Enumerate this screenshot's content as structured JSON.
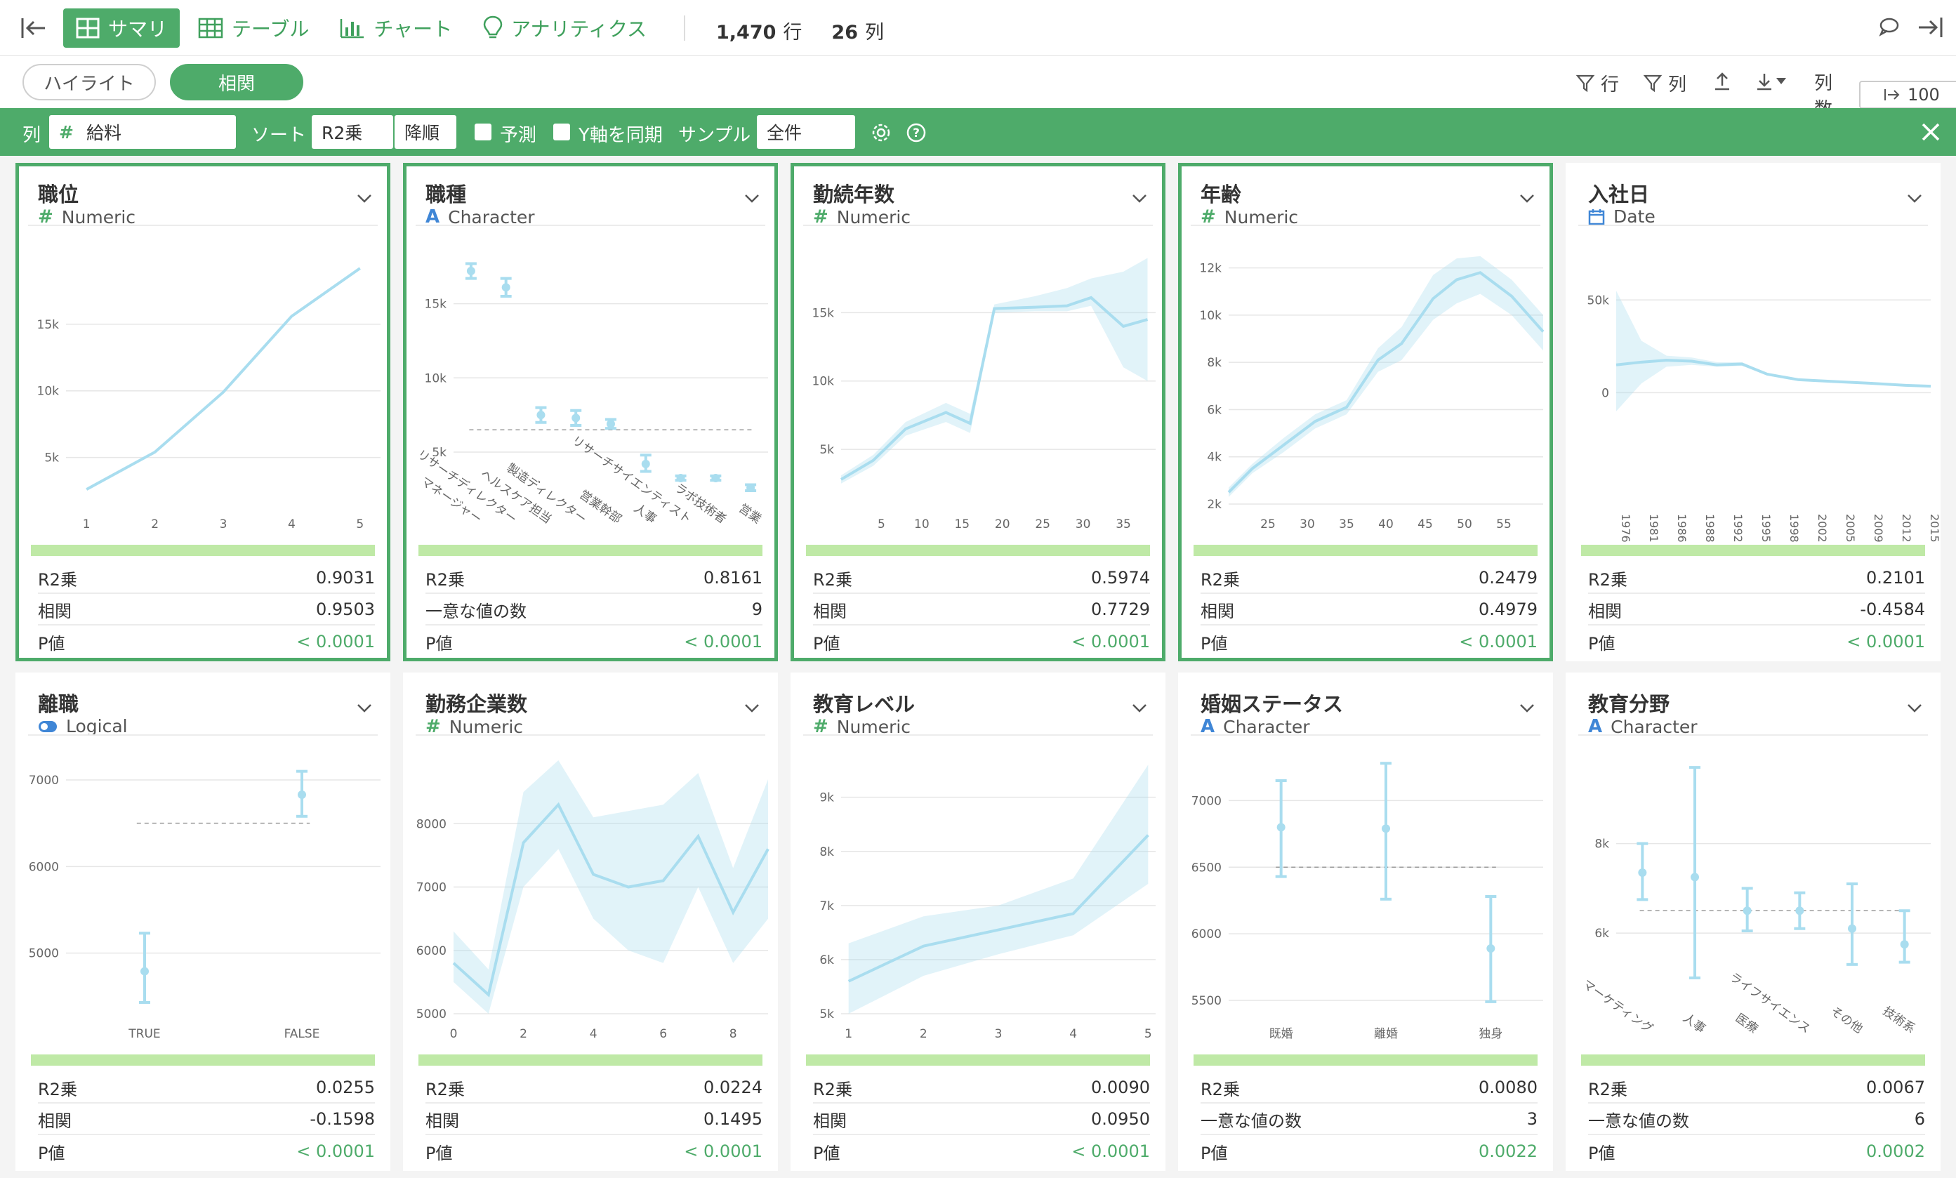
{
  "toolbar": {
    "tabs": [
      {
        "label": "サマリ",
        "icon": "table-grid-icon",
        "active": true
      },
      {
        "label": "テーブル",
        "icon": "table-icon",
        "active": false
      },
      {
        "label": "チャート",
        "icon": "bar-chart-icon",
        "active": false
      },
      {
        "label": "アナリティクス",
        "icon": "lightbulb-icon",
        "active": false
      }
    ],
    "rows_count": "1,470",
    "rows_unit": "行",
    "cols_count": "26",
    "cols_unit": "列"
  },
  "subbar": {
    "pills": [
      {
        "label": "ハイライト",
        "active": false
      },
      {
        "label": "相関",
        "active": true
      }
    ],
    "row_filter": "行",
    "col_filter": "列",
    "col_count_label": "列数",
    "col_count_value": "100"
  },
  "filterbar": {
    "col_label": "列",
    "col_value": "給料",
    "sort_label": "ソート",
    "sort_key": "R2乗",
    "sort_order": "降順",
    "predict_label": "予測",
    "sync_y_label": "Y軸を同期",
    "sample_label": "サンプル",
    "sample_value": "全件"
  },
  "accent": "#4eab6a",
  "cards": [
    {
      "title": "職位",
      "type": "Numeric",
      "selected": true,
      "stats": [
        [
          "R2乗",
          "0.9031"
        ],
        [
          "相関",
          "0.9503"
        ],
        [
          "P値",
          "< 0.0001"
        ]
      ],
      "chart": {
        "kind": "line",
        "x_ticks": [
          "1",
          "2",
          "3",
          "4",
          "5"
        ],
        "y_ticks": [
          "5k",
          "10k",
          "15k"
        ],
        "x": [
          1,
          2,
          3,
          4,
          5
        ],
        "y": [
          2600,
          5400,
          9900,
          15600,
          19200
        ],
        "xlim": [
          0.7,
          5.3
        ],
        "ylim": [
          1500,
          21000
        ],
        "ytick_vals": [
          5000,
          10000,
          15000
        ]
      }
    },
    {
      "title": "職種",
      "type": "Character",
      "selected": true,
      "stats": [
        [
          "R2乗",
          "0.8161"
        ],
        [
          "一意な値の数",
          "9"
        ],
        [
          "P値",
          "< 0.0001"
        ]
      ],
      "chart": {
        "kind": "errorbar",
        "y_ticks": [
          "5k",
          "10k",
          "15k"
        ],
        "ytick_vals": [
          5000,
          10000,
          15000
        ],
        "ylim": [
          1500,
          19000
        ],
        "categories": [
          "マネージャー",
          "リサーチディレクター",
          "ヘルスケア担当",
          "製造ディレクター",
          "営業幹部",
          "人事",
          "リサーチサイエンティスト",
          "ラボ技術者",
          "営業"
        ],
        "means": [
          17200,
          16100,
          7500,
          7300,
          6900,
          4200,
          3250,
          3250,
          2600
        ],
        "lo": [
          16700,
          15500,
          7000,
          6800,
          6600,
          3700,
          3100,
          3100,
          2400
        ],
        "hi": [
          17700,
          16700,
          8000,
          7800,
          7200,
          4800,
          3400,
          3400,
          2800
        ],
        "overall": 6500
      }
    },
    {
      "title": "勤続年数",
      "type": "Numeric",
      "selected": true,
      "stats": [
        [
          "R2乗",
          "0.5974"
        ],
        [
          "相関",
          "0.7729"
        ],
        [
          "P値",
          "< 0.0001"
        ]
      ],
      "chart": {
        "kind": "area",
        "x_ticks": [
          "5",
          "10",
          "15",
          "20",
          "25",
          "30",
          "35"
        ],
        "xtick_vals": [
          5,
          10,
          15,
          20,
          25,
          30,
          35
        ],
        "y_ticks": [
          "5k",
          "10k",
          "15k"
        ],
        "ytick_vals": [
          5000,
          10000,
          15000
        ],
        "xlim": [
          0,
          39
        ],
        "ylim": [
          1000,
          20000
        ],
        "x": [
          0,
          4,
          8,
          13,
          16,
          19,
          24,
          28,
          31,
          35,
          38
        ],
        "y": [
          2800,
          4200,
          6500,
          7700,
          6900,
          15300,
          15400,
          15500,
          16100,
          14000,
          14500
        ],
        "lo": [
          2500,
          3800,
          6000,
          7000,
          6200,
          15000,
          15100,
          15100,
          15500,
          11000,
          10000
        ],
        "hi": [
          3100,
          4600,
          7000,
          8400,
          7600,
          15600,
          16200,
          16800,
          17500,
          18000,
          19000
        ]
      }
    },
    {
      "title": "年齢",
      "type": "Numeric",
      "selected": true,
      "stats": [
        [
          "R2乗",
          "0.2479"
        ],
        [
          "相関",
          "0.4979"
        ],
        [
          "P値",
          "< 0.0001"
        ]
      ],
      "chart": {
        "kind": "area",
        "x_ticks": [
          "25",
          "30",
          "35",
          "40",
          "45",
          "50",
          "55"
        ],
        "xtick_vals": [
          25,
          30,
          35,
          40,
          45,
          50,
          55
        ],
        "y_ticks": [
          "2k",
          "4k",
          "6k",
          "8k",
          "10k",
          "12k"
        ],
        "ytick_vals": [
          2000,
          4000,
          6000,
          8000,
          10000,
          12000
        ],
        "xlim": [
          20,
          60
        ],
        "ylim": [
          2000,
          13000
        ],
        "x": [
          20,
          23,
          27,
          31,
          35,
          39,
          42,
          46,
          49,
          52,
          56,
          60
        ],
        "y": [
          2500,
          3500,
          4500,
          5500,
          6100,
          8100,
          8800,
          10700,
          11500,
          11800,
          10800,
          9300
        ],
        "lo": [
          2300,
          3300,
          4200,
          5200,
          5800,
          7600,
          8100,
          9800,
          10500,
          10900,
          10000,
          8500
        ],
        "hi": [
          2700,
          3700,
          4800,
          5800,
          6400,
          8600,
          9500,
          11700,
          12400,
          12500,
          11500,
          10000
        ]
      }
    },
    {
      "title": "入社日",
      "type": "Date",
      "selected": false,
      "stats": [
        [
          "R2乗",
          "0.2101"
        ],
        [
          "相関",
          "-0.4584"
        ],
        [
          "P値",
          "< 0.0001"
        ]
      ],
      "chart": {
        "kind": "date",
        "x_ticks": [
          "1976",
          "1981",
          "1986",
          "1988",
          "1992",
          "1995",
          "1998",
          "2002",
          "2005",
          "2009",
          "2012",
          "2015"
        ],
        "y_ticks": [
          "0",
          "50k"
        ],
        "ytick_vals": [
          0,
          50000
        ],
        "xlim": [
          0,
          100
        ],
        "ylim": [
          -60000,
          80000
        ],
        "x": [
          0,
          8,
          16,
          24,
          32,
          40,
          48,
          58,
          70,
          82,
          92,
          100
        ],
        "y": [
          15000,
          16500,
          17500,
          17000,
          15000,
          15500,
          10000,
          7000,
          6000,
          5000,
          4000,
          3500
        ],
        "lo": [
          -10000,
          5000,
          14000,
          15000,
          14000,
          14500,
          9500,
          6500,
          5500,
          4700,
          3800,
          3300
        ],
        "hi": [
          55000,
          28000,
          20000,
          19000,
          16500,
          16500,
          10500,
          7500,
          6500,
          5300,
          4300,
          3800
        ]
      }
    },
    {
      "title": "離職",
      "type": "Logical",
      "selected": false,
      "stats": [
        [
          "R2乗",
          "0.0255"
        ],
        [
          "相関",
          "-0.1598"
        ],
        [
          "P値",
          "< 0.0001"
        ]
      ],
      "chart": {
        "kind": "errorbar",
        "y_ticks": [
          "5000",
          "6000",
          "7000"
        ],
        "ytick_vals": [
          5000,
          6000,
          7000
        ],
        "ylim": [
          4300,
          7300
        ],
        "categories": [
          "TRUE",
          "FALSE"
        ],
        "means": [
          4790,
          6830
        ],
        "lo": [
          4430,
          6580
        ],
        "hi": [
          5230,
          7100
        ],
        "overall": 6500
      }
    },
    {
      "title": "勤務企業数",
      "type": "Numeric",
      "selected": false,
      "stats": [
        [
          "R2乗",
          "0.0224"
        ],
        [
          "相関",
          "0.1495"
        ],
        [
          "P値",
          "< 0.0001"
        ]
      ],
      "chart": {
        "kind": "area",
        "x_ticks": [
          "0",
          "2",
          "4",
          "6",
          "8"
        ],
        "xtick_vals": [
          0,
          2,
          4,
          6,
          8
        ],
        "y_ticks": [
          "5000",
          "6000",
          "7000",
          "8000"
        ],
        "ytick_vals": [
          5000,
          6000,
          7000,
          8000
        ],
        "xlim": [
          0,
          9
        ],
        "ylim": [
          5000,
          9100
        ],
        "x": [
          0,
          1,
          2,
          3,
          4,
          5,
          6,
          7,
          8,
          9
        ],
        "y": [
          5800,
          5300,
          7700,
          8300,
          7200,
          7000,
          7100,
          7800,
          6600,
          7600
        ],
        "lo": [
          5500,
          5000,
          7000,
          7600,
          6500,
          6000,
          5800,
          7000,
          5800,
          6500
        ],
        "hi": [
          6300,
          5700,
          8500,
          9000,
          8100,
          8200,
          8300,
          8800,
          7300,
          8700
        ]
      }
    },
    {
      "title": "教育レベル",
      "type": "Numeric",
      "selected": false,
      "stats": [
        [
          "R2乗",
          "0.0090"
        ],
        [
          "相関",
          "0.0950"
        ],
        [
          "P値",
          "< 0.0001"
        ]
      ],
      "chart": {
        "kind": "area",
        "x_ticks": [
          "1",
          "2",
          "3",
          "4",
          "5"
        ],
        "xtick_vals": [
          1,
          2,
          3,
          4,
          5
        ],
        "y_ticks": [
          "5k",
          "6k",
          "7k",
          "8k",
          "9k"
        ],
        "ytick_vals": [
          5000,
          6000,
          7000,
          8000,
          9000
        ],
        "xlim": [
          0.9,
          5.1
        ],
        "ylim": [
          5000,
          9800
        ],
        "x": [
          1,
          2,
          3,
          4,
          5
        ],
        "y": [
          5600,
          6250,
          6550,
          6850,
          8300
        ],
        "lo": [
          5000,
          5700,
          6100,
          6450,
          7400
        ],
        "hi": [
          6300,
          6800,
          7000,
          7500,
          9600
        ]
      }
    },
    {
      "title": "婚姻ステータス",
      "type": "Character",
      "selected": false,
      "stats": [
        [
          "R2乗",
          "0.0080"
        ],
        [
          "一意な値の数",
          "3"
        ],
        [
          "P値",
          "0.0022"
        ]
      ],
      "chart": {
        "kind": "errorbar",
        "y_ticks": [
          "5500",
          "6000",
          "6500",
          "7000"
        ],
        "ytick_vals": [
          5500,
          6000,
          6500,
          7000
        ],
        "ylim": [
          5400,
          7350
        ],
        "categories": [
          "既婚",
          "離婚",
          "独身"
        ],
        "means": [
          6800,
          6790,
          5890
        ],
        "lo": [
          6430,
          6260,
          5490
        ],
        "hi": [
          7150,
          7280,
          6280
        ],
        "overall": 6500
      }
    },
    {
      "title": "教育分野",
      "type": "Character",
      "selected": false,
      "stats": [
        [
          "R2乗",
          "0.0067"
        ],
        [
          "一意な値の数",
          "6"
        ],
        [
          "P値",
          "0.0002"
        ]
      ],
      "chart": {
        "kind": "errorbar",
        "y_ticks": [
          "6k",
          "8k"
        ],
        "ytick_vals": [
          6000,
          8000
        ],
        "ylim": [
          4200,
          10000
        ],
        "categories": [
          "マーケティング",
          "人事",
          "医療",
          "ライフサイエンス",
          "その他",
          "技術系"
        ],
        "means": [
          7350,
          7250,
          6500,
          6500,
          6100,
          5750
        ],
        "lo": [
          6750,
          5000,
          6050,
          6100,
          5300,
          5350
        ],
        "hi": [
          8000,
          9700,
          7000,
          6900,
          7100,
          6500
        ],
        "overall": 6500
      }
    }
  ]
}
